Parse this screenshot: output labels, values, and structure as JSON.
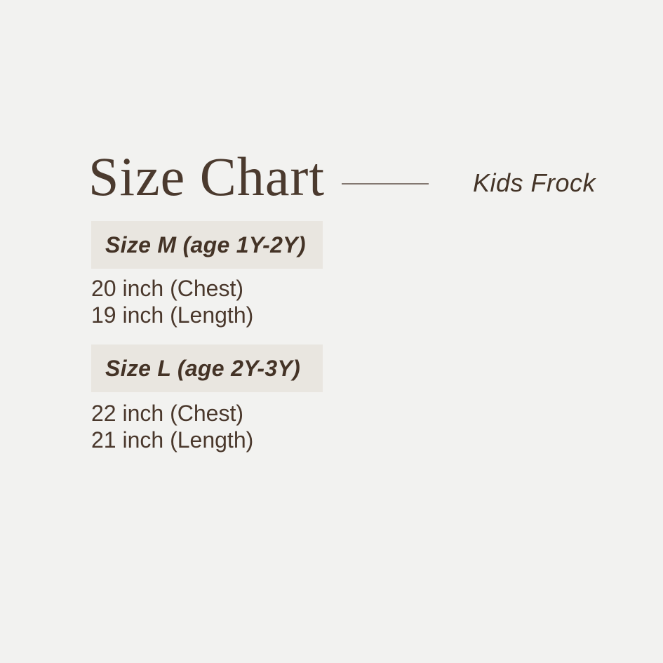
{
  "header": {
    "title": "Size Chart",
    "product": "Kids Frock"
  },
  "sections": [
    {
      "label": "Size M (age 1Y-2Y)",
      "measurements": [
        "20 inch (Chest)",
        "19 inch (Length)"
      ]
    },
    {
      "label": "Size L (age 2Y-3Y)",
      "measurements": [
        "22 inch (Chest)",
        "21 inch (Length)"
      ]
    }
  ],
  "colors": {
    "background": "#f2f2f0",
    "header_box_background": "#e9e6e0",
    "text_dark_brown": "#4a382c",
    "title_brown": "#4b3a2e",
    "line_brown": "#70635a"
  },
  "chart_data": {
    "type": "table",
    "title": "Size Chart",
    "subtitle": "Kids Frock",
    "columns": [
      "Size",
      "Age",
      "Chest (inch)",
      "Length (inch)"
    ],
    "rows": [
      [
        "M",
        "1Y-2Y",
        20,
        19
      ],
      [
        "L",
        "2Y-3Y",
        22,
        21
      ]
    ]
  }
}
